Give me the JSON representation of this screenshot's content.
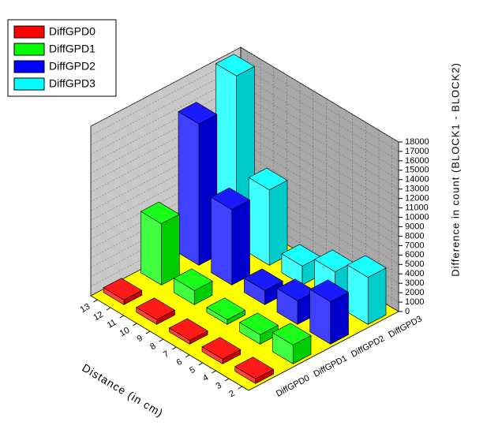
{
  "chart_data": {
    "type": "bar3d",
    "xlabel": "Distance (in cm)",
    "ylabel": "Difference in count (BLOCK1 - BLOCK2)",
    "x": [
      12.5,
      10,
      7.5,
      5,
      2.5
    ],
    "xlim": [
      1.5,
      13.5
    ],
    "xticks": [
      13,
      12,
      11,
      10,
      9,
      8,
      7,
      6,
      5,
      4,
      3,
      2
    ],
    "ylim": [
      0,
      18000
    ],
    "yticks": [
      0,
      1000,
      2000,
      3000,
      4000,
      5000,
      6000,
      7000,
      8000,
      9000,
      10000,
      11000,
      12000,
      13000,
      14000,
      15000,
      16000,
      17000,
      18000
    ],
    "legend": "upper left",
    "series": [
      {
        "name": "DiffGPD0",
        "color": "#ff0000",
        "values": [
          500,
          500,
          400,
          500,
          500
        ]
      },
      {
        "name": "DiffGPD1",
        "color": "#00ff00",
        "values": [
          6500,
          1500,
          500,
          1000,
          2000
        ]
      },
      {
        "name": "DiffGPD2",
        "color": "#0000ff",
        "values": [
          15000,
          8000,
          1500,
          2500,
          4500
        ]
      },
      {
        "name": "DiffGPD3",
        "color": "#00ffff",
        "values": [
          18000,
          8000,
          2000,
          3500,
          5000
        ]
      }
    ]
  }
}
